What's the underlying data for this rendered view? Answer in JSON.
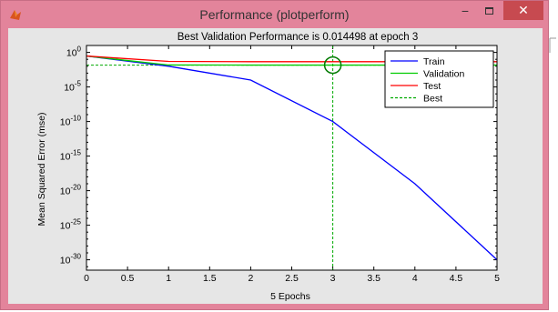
{
  "window": {
    "title": "Performance (plotperform)",
    "minimize_glyph": "−",
    "close_glyph": "✕",
    "icon": "matlab-icon",
    "colors": {
      "frame": "#e3849b",
      "close": "#c74a50",
      "client": "#e6e6e6"
    }
  },
  "chart_data": {
    "type": "line",
    "title": "Best Validation Performance is 0.014498 at epoch 3",
    "xlabel": "5 Epochs",
    "ylabel": "Mean Squared Error  (mse)",
    "xlim": [
      0,
      5
    ],
    "ylim_log10": [
      -31.5,
      1
    ],
    "yscale": "log",
    "grid": false,
    "legend_position": "top-right",
    "x_ticks": [
      "0",
      "0.5",
      "1",
      "1.5",
      "2",
      "2.5",
      "3",
      "3.5",
      "4",
      "4.5",
      "5"
    ],
    "y_ticks": [
      {
        "exp": 0,
        "base": "10",
        "sup": "0"
      },
      {
        "exp": -5,
        "base": "10",
        "sup": "-5"
      },
      {
        "exp": -10,
        "base": "10",
        "sup": "-10"
      },
      {
        "exp": -15,
        "base": "10",
        "sup": "-15"
      },
      {
        "exp": -20,
        "base": "10",
        "sup": "-20"
      },
      {
        "exp": -25,
        "base": "10",
        "sup": "-25"
      },
      {
        "exp": -30,
        "base": "10",
        "sup": "-30"
      }
    ],
    "series": [
      {
        "name": "Train",
        "color": "#0000ff",
        "style": "solid",
        "x": [
          0,
          1,
          2,
          3,
          4,
          5
        ],
        "y": [
          0.3,
          0.01,
          0.0001,
          1e-10,
          1e-19,
          1e-30
        ]
      },
      {
        "name": "Validation",
        "color": "#00cc00",
        "style": "solid",
        "x": [
          0,
          1,
          2,
          3,
          4,
          5
        ],
        "y": [
          0.3,
          0.015,
          0.0146,
          0.014498,
          0.0146,
          0.0146
        ]
      },
      {
        "name": "Test",
        "color": "#ff0000",
        "style": "solid",
        "x": [
          0,
          1,
          2,
          3,
          4,
          5
        ],
        "y": [
          0.3,
          0.05,
          0.045,
          0.045,
          0.045,
          0.045
        ]
      }
    ],
    "best": {
      "name": "Best",
      "color": "#00aa00",
      "style": "dashed",
      "epoch": 3,
      "value": 0.014498
    }
  }
}
